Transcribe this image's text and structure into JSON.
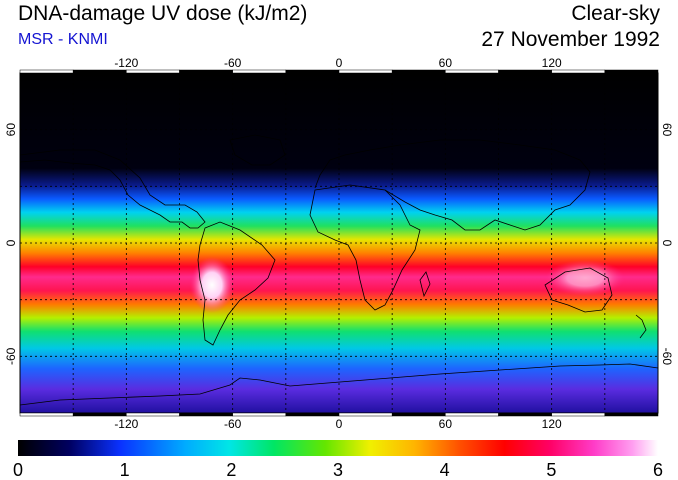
{
  "header": {
    "title": "DNA-damage UV dose (kJ/m2)",
    "subtitle": "MSR - KNMI",
    "condition": "Clear-sky",
    "date": "27 November 1992"
  },
  "colors": {
    "subtitle": "#1414d2",
    "land_outline": "#000000"
  },
  "map": {
    "projection": "equirectangular",
    "lon_range": [
      -180,
      180
    ],
    "lat_range": [
      -90,
      90
    ],
    "grid_longitudes": [
      -150,
      -120,
      -90,
      -60,
      -30,
      0,
      30,
      60,
      90,
      120,
      150
    ],
    "grid_latitudes": [
      -60,
      -30,
      0,
      30,
      60
    ],
    "lon_tick_labels": [
      "-120",
      "-60",
      "0",
      "60",
      "120"
    ],
    "lat_tick_labels_left": [
      "60",
      "0",
      "-60"
    ],
    "lat_tick_labels_right": [
      "60",
      "0",
      "-60"
    ]
  },
  "colorbar": {
    "min": 0,
    "max": 6,
    "labels": [
      "0",
      "1",
      "2",
      "3",
      "4",
      "5",
      "6"
    ]
  }
}
